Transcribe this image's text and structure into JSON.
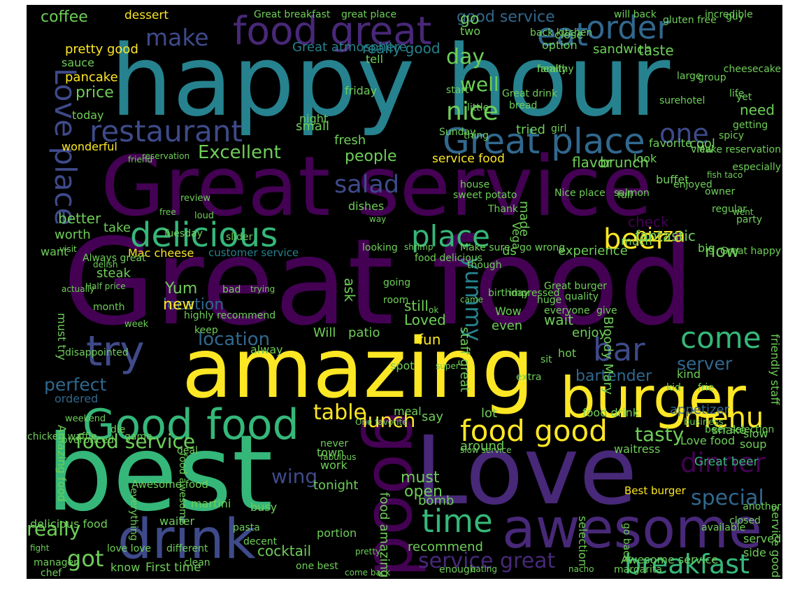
{
  "palette": {
    "purple": "#440154",
    "indigo": "#482878",
    "blue": "#3e4a89",
    "steel": "#31688e",
    "teal": "#26828e",
    "green": "#35b779",
    "lime": "#6ece58",
    "yellow": "#fde725"
  },
  "words": [
    {
      "text": "Great food",
      "color": "#440154"
    },
    {
      "text": "Great service",
      "color": "#440154"
    },
    {
      "text": "happy hour",
      "color": "#26828e"
    },
    {
      "text": "amazing",
      "color": "#fde725"
    },
    {
      "text": "best",
      "color": "#35b779"
    },
    {
      "text": "Love",
      "color": "#482878"
    },
    {
      "text": "burger",
      "color": "#fde725"
    },
    {
      "text": "awesome",
      "color": "#482878"
    },
    {
      "text": "drink",
      "color": "#3e4a89"
    },
    {
      "text": "Good food",
      "color": "#35b779"
    },
    {
      "text": "good",
      "color": "#440154"
    },
    {
      "text": "food great",
      "color": "#482878"
    },
    {
      "text": "try",
      "color": "#3e4a89"
    },
    {
      "text": "Great place",
      "color": "#31688e"
    },
    {
      "text": "delicious",
      "color": "#35b779"
    },
    {
      "text": "Love place",
      "color": "#3e4a89"
    },
    {
      "text": "order",
      "color": "#31688e"
    },
    {
      "text": "eat",
      "color": "#31688e"
    },
    {
      "text": "restaurant",
      "color": "#3e4a89"
    },
    {
      "text": "place",
      "color": "#35b779"
    },
    {
      "text": "food good",
      "color": "#fde725"
    },
    {
      "text": "time",
      "color": "#35b779"
    },
    {
      "text": "breakfast",
      "color": "#35b779"
    },
    {
      "text": "dinner",
      "color": "#440154"
    },
    {
      "text": "menu",
      "color": "#fde725"
    },
    {
      "text": "beer",
      "color": "#fde725"
    },
    {
      "text": "bar",
      "color": "#3e4a89"
    },
    {
      "text": "come",
      "color": "#35b779"
    },
    {
      "text": "nice",
      "color": "#6ece58"
    },
    {
      "text": "one",
      "color": "#3e4a89"
    },
    {
      "text": "salad",
      "color": "#3e4a89"
    },
    {
      "text": "make",
      "color": "#3e4a89"
    },
    {
      "text": "food service",
      "color": "#6ece58"
    },
    {
      "text": "table",
      "color": "#fde725"
    },
    {
      "text": "service great",
      "color": "#482878"
    },
    {
      "text": "special",
      "color": "#31688e"
    },
    {
      "text": "really",
      "color": "#6ece58"
    },
    {
      "text": "got",
      "color": "#6ece58"
    },
    {
      "text": "lunch",
      "color": "#fde725"
    },
    {
      "text": "wing",
      "color": "#3e4a89"
    },
    {
      "text": "server",
      "color": "#31688e"
    },
    {
      "text": "Excellent",
      "color": "#6ece58"
    },
    {
      "text": "pizza",
      "color": "#fde725"
    },
    {
      "text": "tasty",
      "color": "#6ece58"
    },
    {
      "text": "yummy",
      "color": "#26828e"
    },
    {
      "text": "location",
      "color": "#31688e"
    },
    {
      "text": "location",
      "color": "#31688e"
    },
    {
      "text": "new",
      "color": "#fde725"
    },
    {
      "text": "bartender",
      "color": "#31688e"
    },
    {
      "text": "perfect",
      "color": "#31688e"
    },
    {
      "text": "coffee",
      "color": "#6ece58"
    },
    {
      "text": "dessert",
      "color": "#fde725"
    },
    {
      "text": "good service",
      "color": "#31688e"
    },
    {
      "text": "price",
      "color": "#6ece58"
    },
    {
      "text": "well",
      "color": "#6ece58"
    },
    {
      "text": "day",
      "color": "#6ece58"
    },
    {
      "text": "Great beer",
      "color": "#35b779"
    },
    {
      "text": "Best burger",
      "color": "#fde725"
    },
    {
      "text": "Awesome food",
      "color": "#6ece58"
    },
    {
      "text": "customer service",
      "color": "#26828e"
    },
    {
      "text": "Mac cheese",
      "color": "#fde725"
    },
    {
      "text": "ordered",
      "color": "#31688e"
    },
    {
      "text": "appetizer",
      "color": "#31688e"
    },
    {
      "text": "fun",
      "color": "#fde725"
    },
    {
      "text": "wait",
      "color": "#6ece58"
    },
    {
      "text": "must",
      "color": "#6ece58"
    },
    {
      "text": "open",
      "color": "#6ece58"
    },
    {
      "text": "cocktail",
      "color": "#6ece58"
    },
    {
      "text": "First time",
      "color": "#6ece58"
    },
    {
      "text": "know",
      "color": "#6ece58"
    },
    {
      "text": "waiter",
      "color": "#6ece58"
    },
    {
      "text": "tonight",
      "color": "#6ece58"
    },
    {
      "text": "town",
      "color": "#6ece58"
    },
    {
      "text": "work",
      "color": "#6ece58"
    },
    {
      "text": "still",
      "color": "#6ece58"
    },
    {
      "text": "Yum",
      "color": "#6ece58"
    },
    {
      "text": "staff great",
      "color": "#6ece58"
    },
    {
      "text": "brunch",
      "color": "#6ece58"
    },
    {
      "text": "flavor",
      "color": "#6ece58"
    },
    {
      "text": "taste",
      "color": "#6ece58"
    },
    {
      "text": "sandwich",
      "color": "#6ece58"
    },
    {
      "text": "option",
      "color": "#6ece58"
    },
    {
      "text": "Great atmosphere",
      "color": "#26828e"
    },
    {
      "text": "really good",
      "color": "#26828e"
    },
    {
      "text": "pretty good",
      "color": "#fde725"
    },
    {
      "text": "pancake",
      "color": "#fde725"
    },
    {
      "text": "sauce",
      "color": "#6ece58"
    },
    {
      "text": "today",
      "color": "#6ece58"
    },
    {
      "text": "wonderful",
      "color": "#fde725"
    },
    {
      "text": "friend",
      "color": "#6ece58"
    },
    {
      "text": "better",
      "color": "#6ece58"
    },
    {
      "text": "worth",
      "color": "#6ece58"
    },
    {
      "text": "want",
      "color": "#6ece58"
    },
    {
      "text": "take",
      "color": "#6ece58"
    },
    {
      "text": "steak",
      "color": "#6ece58"
    },
    {
      "text": "fresh",
      "color": "#6ece58"
    },
    {
      "text": "night",
      "color": "#6ece58"
    },
    {
      "text": "small",
      "color": "#6ece58"
    },
    {
      "text": "people",
      "color": "#6ece58"
    },
    {
      "text": "service food",
      "color": "#fde725"
    },
    {
      "text": "look",
      "color": "#6ece58"
    },
    {
      "text": "cool",
      "color": "#6ece58"
    },
    {
      "text": "need",
      "color": "#6ece58"
    },
    {
      "text": "favorite",
      "color": "#6ece58"
    },
    {
      "text": "check",
      "color": "#440154"
    },
    {
      "text": "fantastic",
      "color": "#6ece58"
    },
    {
      "text": "much",
      "color": "#6ece58"
    },
    {
      "text": "big",
      "color": "#6ece58"
    },
    {
      "text": "now",
      "color": "#6ece58"
    },
    {
      "text": "experience",
      "color": "#6ece58"
    },
    {
      "text": "enjoy",
      "color": "#6ece58"
    },
    {
      "text": "even",
      "color": "#6ece58"
    },
    {
      "text": "Will",
      "color": "#6ece58"
    },
    {
      "text": "patio",
      "color": "#6ece58"
    },
    {
      "text": "alway",
      "color": "#6ece58"
    },
    {
      "text": "lot",
      "color": "#6ece58"
    },
    {
      "text": "say",
      "color": "#6ece58"
    },
    {
      "text": "spot",
      "color": "#6ece58"
    },
    {
      "text": "hot",
      "color": "#6ece58"
    },
    {
      "text": "Wow",
      "color": "#6ece58"
    },
    {
      "text": "Loved",
      "color": "#6ece58"
    },
    {
      "text": "ask",
      "color": "#6ece58"
    },
    {
      "text": "go",
      "color": "#6ece58"
    },
    {
      "text": "us",
      "color": "#6ece58"
    },
    {
      "text": "soup",
      "color": "#6ece58"
    },
    {
      "text": "slow",
      "color": "#6ece58"
    },
    {
      "text": "shake",
      "color": "#6ece58"
    },
    {
      "text": "side",
      "color": "#6ece58"
    },
    {
      "text": "served",
      "color": "#6ece58"
    },
    {
      "text": "Love food",
      "color": "#6ece58"
    },
    {
      "text": "around",
      "color": "#6ece58"
    },
    {
      "text": "waitress",
      "color": "#6ece58"
    },
    {
      "text": "bomb",
      "color": "#6ece58"
    },
    {
      "text": "busy",
      "color": "#6ece58"
    },
    {
      "text": "martini",
      "color": "#6ece58"
    },
    {
      "text": "portion",
      "color": "#6ece58"
    },
    {
      "text": "recommend",
      "color": "#6ece58"
    },
    {
      "text": "food amazing",
      "color": "#6ece58"
    },
    {
      "text": "Amazing food",
      "color": "#6ece58"
    },
    {
      "text": "everything",
      "color": "#6ece58"
    },
    {
      "text": "delicious food",
      "color": "#6ece58"
    },
    {
      "text": "food awesome",
      "color": "#6ece58"
    },
    {
      "text": "must try",
      "color": "#6ece58"
    },
    {
      "text": "friendly staff",
      "color": "#6ece58"
    },
    {
      "text": "Bloody Mary",
      "color": "#6ece58"
    },
    {
      "text": "meal",
      "color": "#6ece58"
    },
    {
      "text": "beer selection",
      "color": "#6ece58"
    },
    {
      "text": "kind",
      "color": "#6ece58"
    },
    {
      "text": "food drink",
      "color": "#6ece58"
    },
    {
      "text": "selection",
      "color": "#6ece58"
    },
    {
      "text": "Awesome service",
      "color": "#6ece58"
    },
    {
      "text": "go back",
      "color": "#6ece58"
    },
    {
      "text": "service good",
      "color": "#6ece58"
    },
    {
      "text": "great place",
      "color": "#6ece58"
    },
    {
      "text": "Great breakfast",
      "color": "#6ece58"
    },
    {
      "text": "will back",
      "color": "#6ece58"
    },
    {
      "text": "incredible",
      "color": "#6ece58"
    },
    {
      "text": "two",
      "color": "#6ece58"
    },
    {
      "text": "back kitchen",
      "color": "#6ece58"
    },
    {
      "text": "close",
      "color": "#6ece58"
    },
    {
      "text": "made",
      "color": "#6ece58"
    },
    {
      "text": "Vega",
      "color": "#6ece58"
    },
    {
      "text": "Thank",
      "color": "#6ece58"
    },
    {
      "text": "go wrong",
      "color": "#6ece58"
    },
    {
      "text": "Nice place",
      "color": "#6ece58"
    },
    {
      "text": "house",
      "color": "#6ece58"
    },
    {
      "text": "buffet",
      "color": "#6ece58"
    },
    {
      "text": "enjoyed",
      "color": "#6ece58"
    },
    {
      "text": "owner",
      "color": "#6ece58"
    },
    {
      "text": "regular",
      "color": "#6ece58"
    },
    {
      "text": "party",
      "color": "#6ece58"
    },
    {
      "text": "Great happy",
      "color": "#6ece58"
    },
    {
      "text": "Great burger",
      "color": "#6ece58"
    },
    {
      "text": "huge",
      "color": "#6ece58"
    },
    {
      "text": "everyone",
      "color": "#6ece58"
    },
    {
      "text": "birthday",
      "color": "#6ece58"
    },
    {
      "text": "though",
      "color": "#6ece58"
    },
    {
      "text": "going",
      "color": "#6ece58"
    },
    {
      "text": "room",
      "color": "#6ece58"
    },
    {
      "text": "Sunday",
      "color": "#6ece58"
    },
    {
      "text": "thing",
      "color": "#6ece58"
    },
    {
      "text": "tried",
      "color": "#6ece58"
    },
    {
      "text": "view",
      "color": "#6ece58"
    },
    {
      "text": "especially",
      "color": "#6ece58"
    },
    {
      "text": "hotel",
      "color": "#6ece58"
    },
    {
      "text": "start",
      "color": "#6ece58"
    },
    {
      "text": "friday",
      "color": "#6ece58"
    },
    {
      "text": "Great drink",
      "color": "#6ece58"
    },
    {
      "text": "bread",
      "color": "#6ece58"
    },
    {
      "text": "girl",
      "color": "#6ece58"
    },
    {
      "text": "sure",
      "color": "#6ece58"
    },
    {
      "text": "group",
      "color": "#6ece58"
    },
    {
      "text": "life",
      "color": "#6ece58"
    },
    {
      "text": "large",
      "color": "#6ece58"
    },
    {
      "text": "healthy",
      "color": "#6ece58"
    },
    {
      "text": "little",
      "color": "#6ece58"
    },
    {
      "text": "tell",
      "color": "#6ece58"
    },
    {
      "text": "family",
      "color": "#6ece58"
    },
    {
      "text": "gluten free",
      "color": "#6ece58"
    },
    {
      "text": "guy",
      "color": "#6ece58"
    },
    {
      "text": "cheesecake",
      "color": "#6ece58"
    },
    {
      "text": "yet",
      "color": "#6ece58"
    },
    {
      "text": "getting",
      "color": "#6ece58"
    },
    {
      "text": "spicy",
      "color": "#6ece58"
    },
    {
      "text": "salmon",
      "color": "#6ece58"
    },
    {
      "text": "Make reservation",
      "color": "#6ece58"
    },
    {
      "text": "reservation",
      "color": "#6ece58"
    },
    {
      "text": "review",
      "color": "#6ece58"
    },
    {
      "text": "loud",
      "color": "#6ece58"
    },
    {
      "text": "Tuesday",
      "color": "#6ece58"
    },
    {
      "text": "free",
      "color": "#6ece58"
    },
    {
      "text": "dishes",
      "color": "#6ece58"
    },
    {
      "text": "looking",
      "color": "#6ece58"
    },
    {
      "text": "way",
      "color": "#6ece58"
    },
    {
      "text": "sweet potato",
      "color": "#6ece58"
    },
    {
      "text": "Make sure",
      "color": "#6ece58"
    },
    {
      "text": "full",
      "color": "#6ece58"
    },
    {
      "text": "slider",
      "color": "#6ece58"
    },
    {
      "text": "shrimp",
      "color": "#6ece58"
    },
    {
      "text": "food delicious",
      "color": "#6ece58"
    },
    {
      "text": "Always great",
      "color": "#6ece58"
    },
    {
      "text": "delish",
      "color": "#6ece58"
    },
    {
      "text": "actually",
      "color": "#6ece58"
    },
    {
      "text": "disappointed",
      "color": "#6ece58"
    },
    {
      "text": "month",
      "color": "#6ece58"
    },
    {
      "text": "week",
      "color": "#6ece58"
    },
    {
      "text": "highly recommend",
      "color": "#6ece58"
    },
    {
      "text": "keep",
      "color": "#6ece58"
    },
    {
      "text": "bad",
      "color": "#6ece58"
    },
    {
      "text": "trying",
      "color": "#6ece58"
    },
    {
      "text": "ok",
      "color": "#6ece58"
    },
    {
      "text": "came",
      "color": "#6ece58"
    },
    {
      "text": "impressed",
      "color": "#6ece58"
    },
    {
      "text": "quality",
      "color": "#6ece58"
    },
    {
      "text": "give",
      "color": "#6ece58"
    },
    {
      "text": "kid",
      "color": "#6ece58"
    },
    {
      "text": "frie",
      "color": "#6ece58"
    },
    {
      "text": "sit",
      "color": "#6ece58"
    },
    {
      "text": "super",
      "color": "#6ece58"
    },
    {
      "text": "extra",
      "color": "#6ece58"
    },
    {
      "text": "weekend",
      "color": "#6ece58"
    },
    {
      "text": "die",
      "color": "#6ece58"
    },
    {
      "text": "overpriced",
      "color": "#6ece58"
    },
    {
      "text": "chicken waffle",
      "color": "#6ece58"
    },
    {
      "text": "game",
      "color": "#6ece58"
    },
    {
      "text": "deal",
      "color": "#6ece58"
    },
    {
      "text": "never",
      "color": "#6ece58"
    },
    {
      "text": "fabulous",
      "color": "#6ece58"
    },
    {
      "text": "One favorite",
      "color": "#6ece58"
    },
    {
      "text": "slow service",
      "color": "#6ece58"
    },
    {
      "text": "business",
      "color": "#6ece58"
    },
    {
      "text": "another",
      "color": "#6ece58"
    },
    {
      "text": "closed",
      "color": "#6ece58"
    },
    {
      "text": "manager",
      "color": "#6ece58"
    },
    {
      "text": "chef",
      "color": "#6ece58"
    },
    {
      "text": "love love",
      "color": "#6ece58"
    },
    {
      "text": "fight",
      "color": "#6ece58"
    },
    {
      "text": "different",
      "color": "#6ece58"
    },
    {
      "text": "clean",
      "color": "#6ece58"
    },
    {
      "text": "pasta",
      "color": "#6ece58"
    },
    {
      "text": "decent",
      "color": "#6ece58"
    },
    {
      "text": "enough",
      "color": "#6ece58"
    },
    {
      "text": "eating",
      "color": "#6ece58"
    },
    {
      "text": "nacho",
      "color": "#6ece58"
    },
    {
      "text": "margarita",
      "color": "#6ece58"
    },
    {
      "text": "come back",
      "color": "#6ece58"
    },
    {
      "text": "one best",
      "color": "#6ece58"
    },
    {
      "text": "available",
      "color": "#6ece58"
    },
    {
      "text": "pretty",
      "color": "#6ece58"
    },
    {
      "text": "fish taco",
      "color": "#6ece58"
    },
    {
      "text": "went",
      "color": "#6ece58"
    },
    {
      "text": "visit",
      "color": "#6ece58"
    },
    {
      "text": "Half price",
      "color": "#6ece58"
    }
  ]
}
